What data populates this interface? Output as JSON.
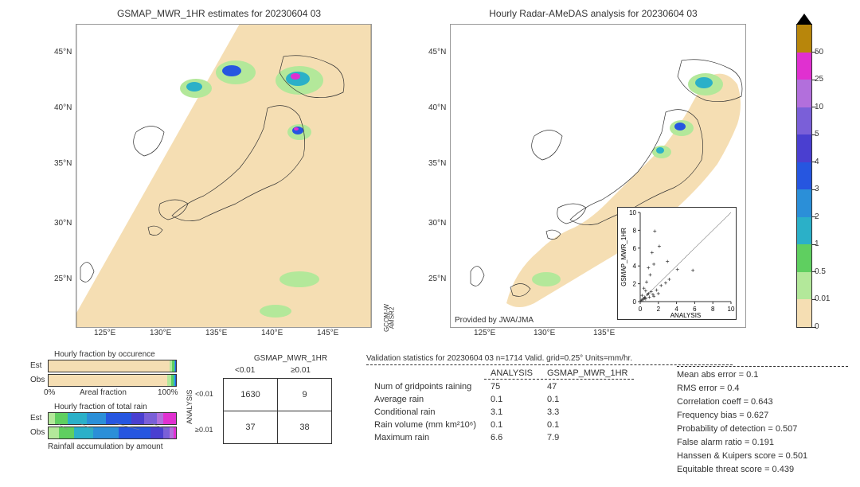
{
  "left_map": {
    "title": "GSMAP_MWR_1HR estimates for 20230604 03",
    "xticks": [
      "125°E",
      "130°E",
      "135°E",
      "140°E",
      "145°E"
    ],
    "yticks": [
      "25°N",
      "30°N",
      "35°N",
      "40°N",
      "45°N"
    ],
    "sat_label1": "GCOM-W",
    "sat_label2": "AMSR2",
    "swath_color": "#f5deb3",
    "bg_color": "#ffffff"
  },
  "right_map": {
    "title": "Hourly Radar-AMeDAS analysis for 20230604 03",
    "xticks": [
      "125°E",
      "130°E",
      "135°E"
    ],
    "yticks": [
      "25°N",
      "30°N",
      "35°N",
      "40°N",
      "45°N"
    ],
    "coverage_color": "#f5deb3",
    "provider": "Provided by JWA/JMA"
  },
  "colorbar": {
    "ticks": [
      "0",
      "0.01",
      "0.5",
      "1",
      "2",
      "3",
      "4",
      "5",
      "10",
      "25",
      "50"
    ],
    "colors": [
      "#f5deb3",
      "#b3e89a",
      "#5fcf60",
      "#2bb0c8",
      "#2b8fd8",
      "#2656e0",
      "#4a3fd0",
      "#7a5fd8",
      "#b26fdc",
      "#e030d0",
      "#b8860b"
    ],
    "top_color": "#000000"
  },
  "scatter": {
    "xlabel": "ANALYSIS",
    "ylabel": "GSMAP_MWR_1HR",
    "xlim": [
      0,
      10
    ],
    "ylim": [
      0,
      10
    ],
    "ticks": [
      0,
      2,
      4,
      6,
      8,
      10
    ],
    "points": [
      [
        0.1,
        0.1
      ],
      [
        0.3,
        0.2
      ],
      [
        0.5,
        0.4
      ],
      [
        0.2,
        0.7
      ],
      [
        0.6,
        0.3
      ],
      [
        0.8,
        0.8
      ],
      [
        1.0,
        0.5
      ],
      [
        1.2,
        1.1
      ],
      [
        0.4,
        1.5
      ],
      [
        1.5,
        0.6
      ],
      [
        1.8,
        1.3
      ],
      [
        2.0,
        0.9
      ],
      [
        0.7,
        2.2
      ],
      [
        2.3,
        1.8
      ],
      [
        1.1,
        3.0
      ],
      [
        2.8,
        2.1
      ],
      [
        1.5,
        4.2
      ],
      [
        3.2,
        2.5
      ],
      [
        0.9,
        3.8
      ],
      [
        4.1,
        3.6
      ],
      [
        1.3,
        5.5
      ],
      [
        2.1,
        6.2
      ],
      [
        3.0,
        4.5
      ],
      [
        1.6,
        7.9
      ],
      [
        5.8,
        3.5
      ],
      [
        0.5,
        0.5
      ],
      [
        0.9,
        0.9
      ],
      [
        0.6,
        1.2
      ],
      [
        1.4,
        0.8
      ],
      [
        0.3,
        0.3
      ]
    ]
  },
  "occurence": {
    "title": "Hourly fraction by occurence",
    "est_label": "Est",
    "obs_label": "Obs",
    "left_axis": "0%",
    "right_axis": "100%",
    "axis_title": "Areal fraction",
    "est_segs": [
      [
        "#f5deb3",
        0.95
      ],
      [
        "#b3e89a",
        0.02
      ],
      [
        "#5fcf60",
        0.015
      ],
      [
        "#2bb0c8",
        0.01
      ],
      [
        "#2656e0",
        0.005
      ]
    ],
    "obs_segs": [
      [
        "#f5deb3",
        0.93
      ],
      [
        "#b3e89a",
        0.03
      ],
      [
        "#5fcf60",
        0.02
      ],
      [
        "#2bb0c8",
        0.015
      ],
      [
        "#2656e0",
        0.005
      ]
    ]
  },
  "total_rain": {
    "title": "Hourly fraction of total rain",
    "est_label": "Est",
    "obs_label": "Obs",
    "footer": "Rainfall accumulation by amount",
    "est_segs": [
      [
        "#b3e89a",
        0.05
      ],
      [
        "#5fcf60",
        0.1
      ],
      [
        "#2bb0c8",
        0.15
      ],
      [
        "#2b8fd8",
        0.15
      ],
      [
        "#2656e0",
        0.2
      ],
      [
        "#4a3fd0",
        0.1
      ],
      [
        "#7a5fd8",
        0.1
      ],
      [
        "#b26fdc",
        0.05
      ],
      [
        "#e030d0",
        0.1
      ]
    ],
    "obs_segs": [
      [
        "#b3e89a",
        0.08
      ],
      [
        "#5fcf60",
        0.12
      ],
      [
        "#2bb0c8",
        0.15
      ],
      [
        "#2b8fd8",
        0.2
      ],
      [
        "#2656e0",
        0.25
      ],
      [
        "#4a3fd0",
        0.1
      ],
      [
        "#7a5fd8",
        0.05
      ],
      [
        "#b26fdc",
        0.03
      ],
      [
        "#e030d0",
        0.02
      ]
    ]
  },
  "contingency": {
    "col_title": "GSMAP_MWR_1HR",
    "row_title": "ANALYSIS",
    "col_headers": [
      "<0.01",
      "≥0.01"
    ],
    "row_headers": [
      "<0.01",
      "≥0.01"
    ],
    "cells": [
      [
        "1630",
        "9"
      ],
      [
        "37",
        "38"
      ]
    ]
  },
  "validation": {
    "title": "Validation statistics for 20230604 03  n=1714 Valid. grid=0.25° Units=mm/hr.",
    "col_headers": [
      "ANALYSIS",
      "GSMAP_MWR_1HR"
    ],
    "rows": [
      [
        "Num of gridpoints raining",
        "75",
        "47"
      ],
      [
        "Average rain",
        "0.1",
        "0.1"
      ],
      [
        "Conditional rain",
        "3.1",
        "3.3"
      ],
      [
        "Rain volume (mm km²10⁶)",
        "0.1",
        "0.1"
      ],
      [
        "Maximum rain",
        "6.6",
        "7.9"
      ]
    ]
  },
  "stats": {
    "items": [
      "Mean abs error =    0.1",
      "RMS error =    0.4",
      "Correlation coeff =  0.643",
      "Frequency bias =  0.627",
      "Probability of detection =  0.507",
      "False alarm ratio =  0.191",
      "Hanssen & Kuipers score =  0.501",
      "Equitable threat score =  0.439"
    ]
  }
}
